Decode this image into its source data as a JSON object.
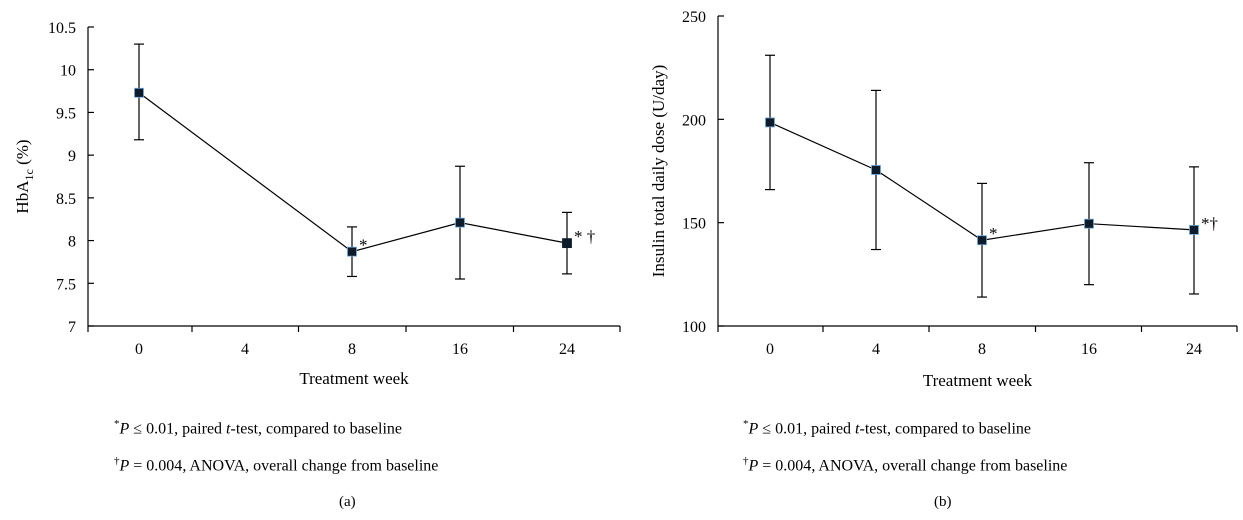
{
  "chart_data": [
    {
      "type": "line",
      "panel": "(a)",
      "ylabel": "HbA1c (%)",
      "xlabel": "Treatment week",
      "x_ticks": [
        "0",
        "4",
        "8",
        "16",
        "24"
      ],
      "x": [
        "0",
        "8",
        "16",
        "24"
      ],
      "ylim": [
        7,
        10.5
      ],
      "y_ticks": [
        "7",
        "7.5",
        "8",
        "8.5",
        "9",
        "9.5",
        "10",
        "10.5"
      ],
      "series": [
        {
          "values": [
            9.73,
            7.87,
            8.21,
            7.97
          ],
          "error_low": [
            9.18,
            7.58,
            7.55,
            7.61
          ],
          "error_high": [
            10.3,
            8.16,
            8.87,
            8.33
          ],
          "annotations": [
            "",
            "*",
            "",
            "* †"
          ]
        }
      ],
      "footnotes": {
        "star": {
          "mark": "*",
          "p": "P",
          "rel": "≤ 0.01",
          "prefix": ", paired ",
          "t": "t",
          "suffix": "-test, compared to baseline"
        },
        "dagger": {
          "mark": "†",
          "p": "P",
          "rel": "= 0.004",
          "suffix": ", ANOVA, overall change from baseline"
        }
      }
    },
    {
      "type": "line",
      "panel": "(b)",
      "ylabel": "Insulin total daily dose (U/day)",
      "xlabel": "Treatment week",
      "x_ticks": [
        "0",
        "4",
        "8",
        "16",
        "24"
      ],
      "x": [
        "0",
        "4",
        "8",
        "16",
        "24"
      ],
      "ylim": [
        100,
        250
      ],
      "y_ticks": [
        "100",
        "150",
        "200",
        "250"
      ],
      "series": [
        {
          "values": [
            198.5,
            175.5,
            141.5,
            149.5,
            146.5
          ],
          "error_low": [
            166,
            137,
            114,
            120,
            115.5
          ],
          "error_high": [
            231,
            214,
            169,
            179,
            177
          ],
          "annotations": [
            "",
            "",
            "*",
            "",
            "*†"
          ]
        }
      ],
      "footnotes": {
        "star": {
          "mark": "*",
          "p": "P",
          "rel": "≤ 0.01",
          "prefix": ", paired ",
          "t": "t",
          "suffix": "-test, compared to baseline"
        },
        "dagger": {
          "mark": "†",
          "p": "P",
          "rel": "= 0.004",
          "suffix": ", ANOVA, overall change from baseline"
        }
      }
    }
  ]
}
